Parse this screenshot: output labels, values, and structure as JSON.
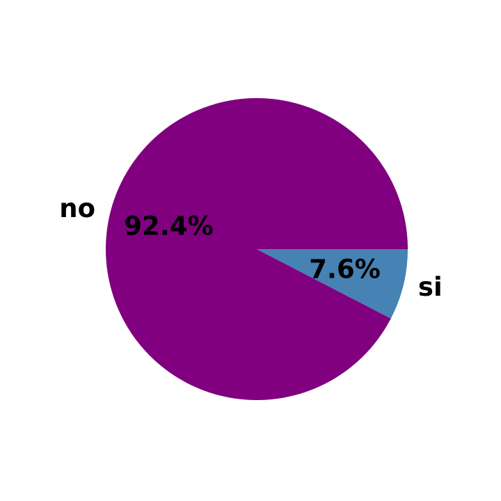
{
  "chart_data": {
    "type": "pie",
    "title": "",
    "categories": [
      "no",
      "si"
    ],
    "values": [
      92.4,
      7.6
    ],
    "value_labels": [
      "92.4%",
      "7.6%"
    ],
    "colors": [
      "#800080",
      "#4682b4"
    ],
    "start_angle_deg": 0,
    "direction": "clockwise",
    "legend": "none"
  }
}
